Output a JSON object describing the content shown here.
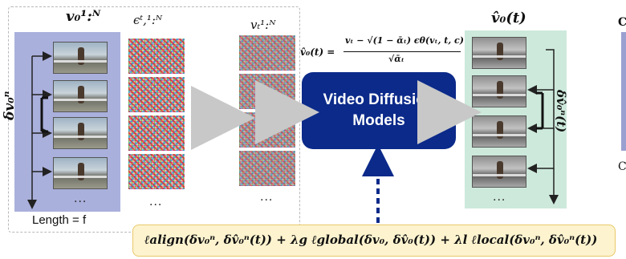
{
  "labels": {
    "v0": "v₀¹:ᴺ",
    "eps": "ϵᵗ,¹:ᴺ",
    "vt": "vₜ¹:ᴺ",
    "v0hat": "v̂₀(t)",
    "delta_left": "δv₀ⁿ",
    "delta_right": "δv̂₀ⁿ(t)",
    "length": "Length = f",
    "dots": "...",
    "formula_lhs": "v̂₀(t) =",
    "formula_num": "vₜ − √(1 − ᾱₜ) ϵθ(vₜ, t, c)",
    "formula_den": "√ᾱₜ",
    "conv_symbol": "∗",
    "cut_c1": "C",
    "cut_c2": "C"
  },
  "model_box": {
    "line1": "Video Diffusion",
    "line2": "Models"
  },
  "loss": "ℓalign(δv₀ⁿ, δv̂₀ⁿ(t)) + λg ℓglobal(δv₀, δv̂₀(t)) + λl ℓlocal(δv₀ⁿ, δv̂₀ⁿ(t))",
  "colors": {
    "left_panel": "#aab0dc",
    "right_panel": "#cde9dc",
    "model_box": "#0b2a8a",
    "loss_box": "#fdf3cf"
  }
}
